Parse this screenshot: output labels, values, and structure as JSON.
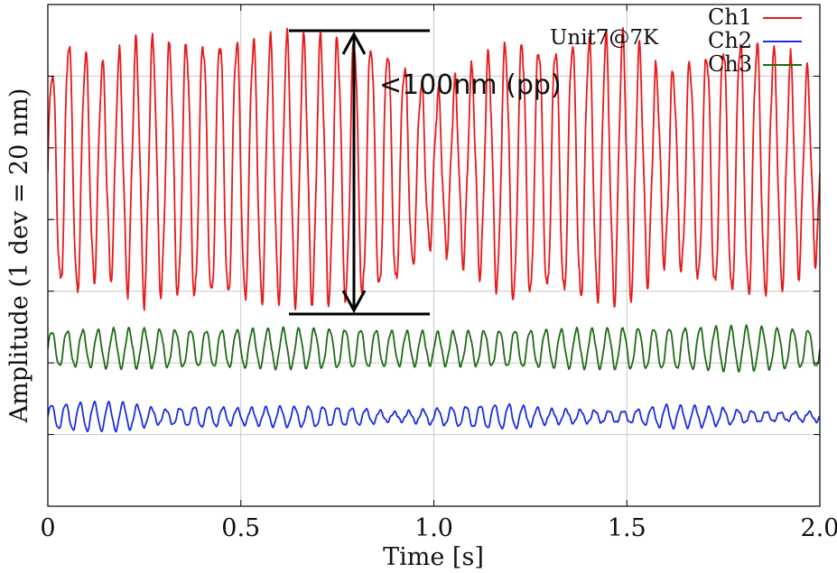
{
  "chart_data": {
    "type": "line",
    "title": "",
    "xlabel": "Time [s]",
    "ylabel": "Amplitude (1 dev = 20 nm)",
    "xlim": [
      0,
      2.0
    ],
    "xticks": [
      "0",
      "0.5",
      "1.0",
      "1.5",
      "2.0"
    ],
    "y_divisions": 7,
    "grid": true,
    "legend_position": "top-right",
    "annotations": {
      "label": "Unit7@7K",
      "peak_to_peak": "<100nm (pp)"
    },
    "series": [
      {
        "name": "Ch1",
        "color": "#e8191b",
        "mean_div": 4.7,
        "amplitude_div": 1.8,
        "frequency_hz": 23,
        "envelope": [
          [
            0.0,
            0.7
          ],
          [
            0.05,
            1.0
          ],
          [
            0.1,
            0.9
          ],
          [
            0.15,
            0.8
          ],
          [
            0.2,
            0.9
          ],
          [
            0.25,
            1.0
          ],
          [
            0.3,
            0.95
          ],
          [
            0.4,
            1.0
          ],
          [
            0.5,
            1.0
          ],
          [
            0.6,
            1.0
          ],
          [
            0.7,
            1.0
          ],
          [
            0.8,
            1.0
          ],
          [
            0.9,
            0.9
          ],
          [
            1.0,
            0.55
          ],
          [
            1.1,
            0.75
          ],
          [
            1.2,
            1.0
          ],
          [
            1.3,
            0.95
          ],
          [
            1.4,
            1.0
          ],
          [
            1.5,
            1.0
          ],
          [
            1.6,
            0.7
          ],
          [
            1.7,
            0.9
          ],
          [
            1.8,
            1.0
          ],
          [
            1.9,
            0.9
          ],
          [
            2.0,
            0.65
          ]
        ]
      },
      {
        "name": "Ch2",
        "color": "#1a2fe0",
        "mean_div": 1.25,
        "amplitude_div": 0.2,
        "frequency_hz": 27,
        "envelope": [
          [
            0.0,
            0.8
          ],
          [
            0.1,
            1.0
          ],
          [
            0.2,
            0.95
          ],
          [
            0.3,
            0.5
          ],
          [
            0.4,
            0.75
          ],
          [
            0.5,
            0.55
          ],
          [
            0.6,
            0.7
          ],
          [
            0.7,
            0.7
          ],
          [
            0.8,
            0.6
          ],
          [
            0.9,
            0.3
          ],
          [
            1.0,
            0.55
          ],
          [
            1.1,
            0.75
          ],
          [
            1.2,
            0.85
          ],
          [
            1.3,
            0.5
          ],
          [
            1.4,
            0.45
          ],
          [
            1.5,
            0.4
          ],
          [
            1.6,
            0.8
          ],
          [
            1.7,
            0.7
          ],
          [
            1.8,
            0.45
          ],
          [
            1.9,
            0.3
          ],
          [
            2.0,
            0.35
          ]
        ]
      },
      {
        "name": "Ch3",
        "color": "#1e6b16",
        "mean_div": 2.2,
        "amplitude_div": 0.3,
        "frequency_hz": 25,
        "envelope": [
          [
            0.0,
            0.8
          ],
          [
            0.2,
            0.9
          ],
          [
            0.4,
            0.85
          ],
          [
            0.6,
            0.9
          ],
          [
            0.8,
            0.9
          ],
          [
            1.0,
            0.75
          ],
          [
            1.2,
            0.85
          ],
          [
            1.4,
            0.9
          ],
          [
            1.6,
            0.95
          ],
          [
            1.8,
            1.0
          ],
          [
            2.0,
            0.85
          ]
        ]
      }
    ]
  }
}
